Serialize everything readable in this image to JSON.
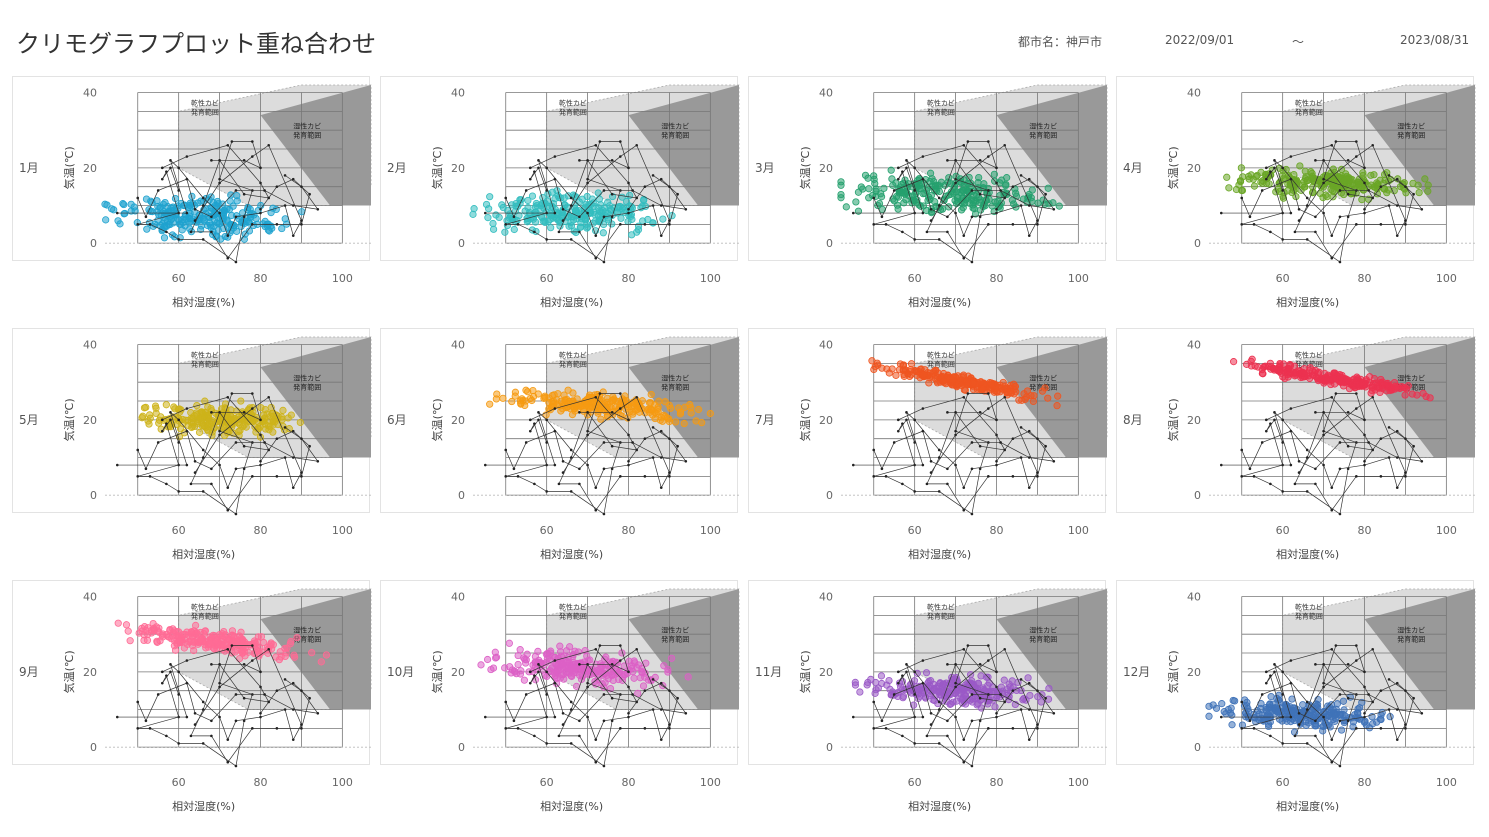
{
  "title": "クリモグラフプロット重ね合わせ",
  "city_label": "都市名：神戸市",
  "date_from": "2022/09/01",
  "tilde": "～",
  "date_to": "2023/08/31",
  "zone_labels": {
    "dry": [
      "乾性カビ",
      "発育範囲"
    ],
    "wet": [
      "湿性カビ",
      "発育範囲"
    ]
  },
  "axis": {
    "xlabel": "相対湿度(%)",
    "ylabel": "気温(℃)",
    "xticks": [
      60,
      80,
      100
    ],
    "yticks": [
      0,
      20,
      40
    ],
    "xlim": [
      42,
      107
    ],
    "ylim": [
      -5,
      42
    ]
  },
  "chart_data": [
    {
      "type": "scatter",
      "month": "1月",
      "color": "#1fa3cf",
      "center": [
        66,
        7
      ],
      "spread": [
        14,
        4
      ],
      "slope": -0.05,
      "xrange": [
        42,
        96
      ]
    },
    {
      "type": "scatter",
      "month": "2月",
      "color": "#33bdbf",
      "center": [
        66,
        8
      ],
      "spread": [
        14,
        4
      ],
      "slope": -0.02,
      "xrange": [
        42,
        96
      ]
    },
    {
      "type": "scatter",
      "month": "3月",
      "color": "#25a06e",
      "center": [
        68,
        13
      ],
      "spread": [
        16,
        4
      ],
      "slope": -0.05,
      "xrange": [
        42,
        98
      ]
    },
    {
      "type": "scatter",
      "month": "4月",
      "color": "#6aa626",
      "center": [
        70,
        16
      ],
      "spread": [
        15,
        3
      ],
      "slope": -0.03,
      "xrange": [
        42,
        98
      ]
    },
    {
      "type": "scatter",
      "month": "5月",
      "color": "#cdb31a",
      "center": [
        70,
        20
      ],
      "spread": [
        14,
        3
      ],
      "slope": -0.02,
      "xrange": [
        42,
        100
      ]
    },
    {
      "type": "scatter",
      "month": "6月",
      "color": "#f59a12",
      "center": [
        72,
        24
      ],
      "spread": [
        16,
        2.5
      ],
      "slope": -0.08,
      "xrange": [
        42,
        100
      ]
    },
    {
      "type": "scatter",
      "month": "7月",
      "color": "#ef5520",
      "center": [
        72,
        30
      ],
      "spread": [
        14,
        1.5
      ],
      "slope": -0.2,
      "xrange": [
        46,
        100
      ]
    },
    {
      "type": "scatter",
      "month": "8月",
      "color": "#ec3250",
      "center": [
        72,
        31
      ],
      "spread": [
        14,
        1.5
      ],
      "slope": -0.18,
      "xrange": [
        42,
        98
      ]
    },
    {
      "type": "scatter",
      "month": "9月",
      "color": "#ff6b95",
      "center": [
        70,
        28
      ],
      "spread": [
        14,
        2.5
      ],
      "slope": -0.15,
      "xrange": [
        42,
        100
      ]
    },
    {
      "type": "scatter",
      "month": "10月",
      "color": "#dc60c6",
      "center": [
        68,
        21
      ],
      "spread": [
        14,
        3.5
      ],
      "slope": -0.1,
      "xrange": [
        42,
        98
      ]
    },
    {
      "type": "scatter",
      "month": "11月",
      "color": "#9a5ac7",
      "center": [
        70,
        15
      ],
      "spread": [
        14,
        3
      ],
      "slope": -0.06,
      "xrange": [
        42,
        98
      ]
    },
    {
      "type": "scatter",
      "month": "12月",
      "color": "#3f72b8",
      "center": [
        64,
        9
      ],
      "spread": [
        14,
        3
      ],
      "slope": -0.05,
      "xrange": [
        42,
        98
      ]
    }
  ],
  "climograph_lines": [
    [
      [
        60,
        14
      ],
      [
        58,
        20
      ],
      [
        56,
        17
      ],
      [
        57,
        19
      ],
      [
        60,
        8
      ],
      [
        50,
        5
      ],
      [
        53,
        5
      ],
      [
        57,
        3
      ],
      [
        60,
        1
      ],
      [
        66,
        1
      ],
      [
        74,
        -5
      ],
      [
        76,
        7
      ],
      [
        78,
        14
      ],
      [
        70,
        17
      ],
      [
        73,
        27
      ],
      [
        78,
        27
      ],
      [
        80,
        20
      ],
      [
        76,
        22
      ],
      [
        68,
        22
      ]
    ],
    [
      [
        45,
        8
      ],
      [
        62,
        8
      ],
      [
        58,
        22
      ],
      [
        60,
        20
      ],
      [
        66,
        12
      ],
      [
        70,
        8
      ],
      [
        72,
        2
      ],
      [
        74,
        7
      ],
      [
        80,
        8
      ],
      [
        86,
        10
      ],
      [
        88,
        2
      ],
      [
        90,
        6
      ],
      [
        82,
        26
      ],
      [
        78,
        23
      ],
      [
        70,
        16
      ],
      [
        64,
        6
      ]
    ],
    [
      [
        56,
        20
      ],
      [
        62,
        23
      ],
      [
        72,
        26
      ],
      [
        80,
        16
      ],
      [
        82,
        12
      ],
      [
        76,
        13
      ],
      [
        70,
        22
      ],
      [
        66,
        10
      ],
      [
        63,
        3
      ],
      [
        68,
        3
      ],
      [
        72,
        -4
      ],
      [
        78,
        5
      ],
      [
        84,
        5
      ],
      [
        90,
        5
      ],
      [
        92,
        13
      ],
      [
        88,
        17
      ],
      [
        84,
        15
      ],
      [
        80,
        9
      ]
    ],
    [
      [
        50,
        12
      ],
      [
        52,
        7
      ],
      [
        55,
        14
      ],
      [
        62,
        17
      ],
      [
        64,
        9
      ],
      [
        68,
        7
      ],
      [
        74,
        14
      ],
      [
        81,
        14
      ],
      [
        88,
        10
      ],
      [
        94,
        9
      ],
      [
        90,
        15
      ],
      [
        86,
        18
      ]
    ]
  ]
}
